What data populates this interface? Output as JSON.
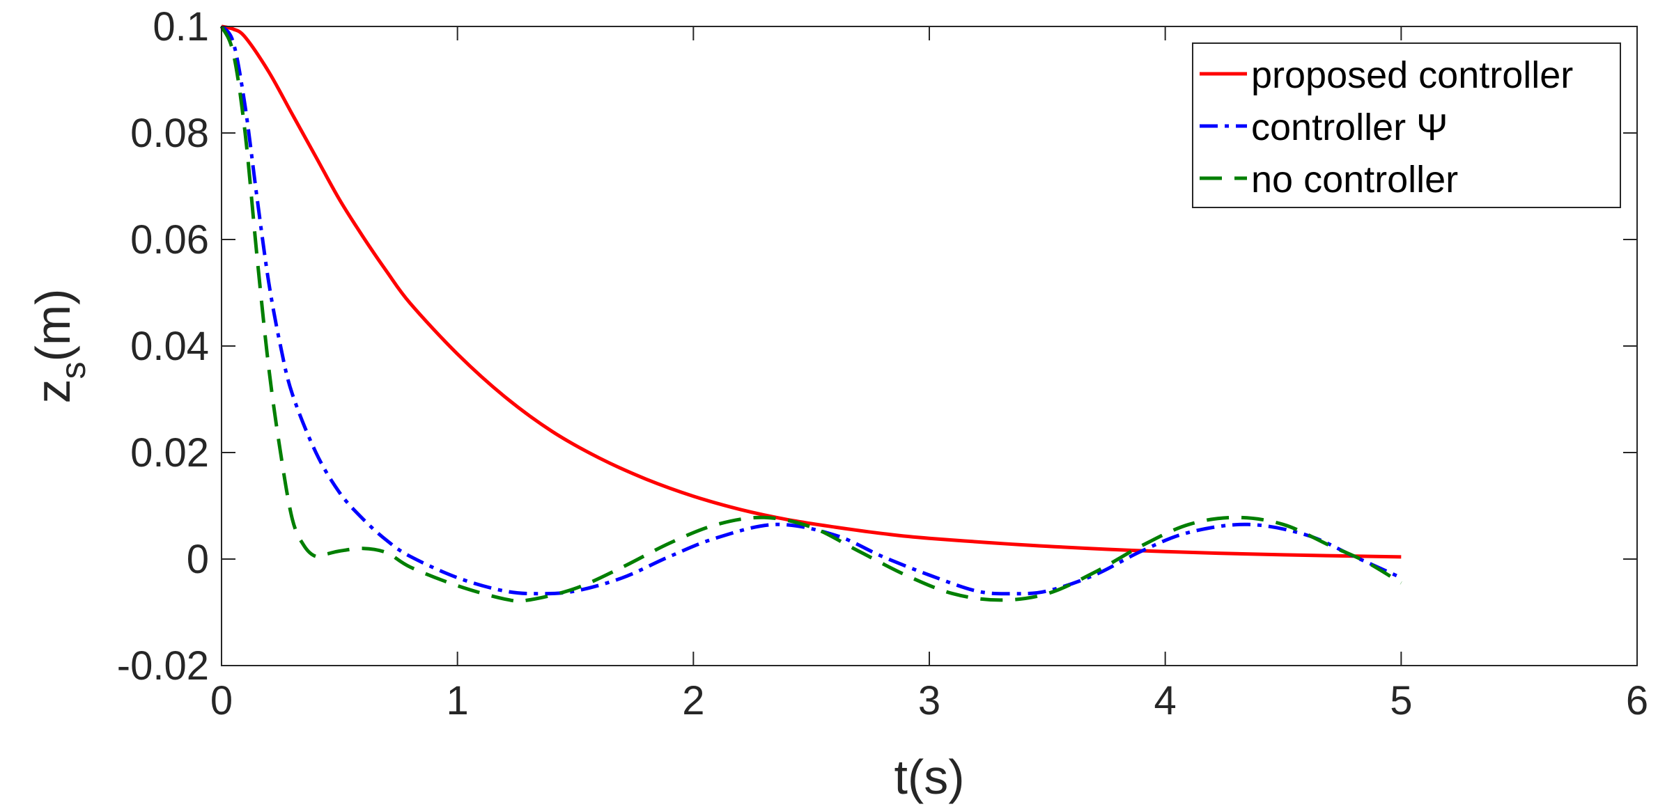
{
  "chart_data": {
    "type": "line",
    "title": "",
    "xlabel": "t(s)",
    "ylabel_main": "z",
    "ylabel_sub": "s",
    "ylabel_unit": "(m)",
    "xlim": [
      0,
      6
    ],
    "ylim": [
      -0.02,
      0.1
    ],
    "xticks": [
      0,
      1,
      2,
      3,
      4,
      5,
      6
    ],
    "xtick_labels": [
      "0",
      "1",
      "2",
      "3",
      "4",
      "5",
      "6"
    ],
    "yticks": [
      -0.02,
      0,
      0.02,
      0.04,
      0.06,
      0.08,
      0.1
    ],
    "ytick_labels": [
      "-0.02",
      "0",
      "0.02",
      "0.04",
      "0.06",
      "0.08",
      "0.1"
    ],
    "grid": false,
    "legend_position": "top-right",
    "series": [
      {
        "name": "proposed controller",
        "color": "#ff0000",
        "dash": "solid",
        "x": [
          0,
          0.05,
          0.1,
          0.2,
          0.3,
          0.4,
          0.5,
          0.6,
          0.7,
          0.8,
          1.0,
          1.2,
          1.4,
          1.6,
          1.8,
          2.0,
          2.2,
          2.4,
          2.6,
          2.8,
          3.0,
          3.5,
          4.0,
          4.5,
          5.0
        ],
        "y": [
          0.1,
          0.0995,
          0.098,
          0.0915,
          0.0835,
          0.0755,
          0.0675,
          0.0605,
          0.054,
          0.048,
          0.0385,
          0.0305,
          0.024,
          0.019,
          0.015,
          0.0118,
          0.0093,
          0.0074,
          0.006,
          0.0048,
          0.0039,
          0.0024,
          0.0014,
          0.0008,
          0.0004
        ]
      },
      {
        "name": "controller Ψ",
        "color": "#0000ff",
        "dash": "dashdot",
        "x": [
          0,
          0.05,
          0.1,
          0.15,
          0.2,
          0.25,
          0.3,
          0.4,
          0.5,
          0.6,
          0.7,
          0.8,
          1.0,
          1.2,
          1.35,
          1.5,
          1.7,
          1.9,
          2.1,
          2.35,
          2.6,
          2.8,
          3.0,
          3.2,
          3.35,
          3.5,
          3.7,
          3.9,
          4.1,
          4.35,
          4.6,
          4.8,
          5.0
        ],
        "y": [
          0.1,
          0.097,
          0.085,
          0.068,
          0.052,
          0.04,
          0.031,
          0.02,
          0.0125,
          0.0075,
          0.0035,
          0.0005,
          -0.0035,
          -0.006,
          -0.0065,
          -0.006,
          -0.0035,
          0.0005,
          0.004,
          0.0065,
          0.0045,
          0.0005,
          -0.003,
          -0.006,
          -0.0065,
          -0.006,
          -0.003,
          0.0015,
          0.005,
          0.0065,
          0.0045,
          0.0005,
          -0.0035
        ]
      },
      {
        "name": "no controller",
        "color": "#007f00",
        "dash": "dashed",
        "x": [
          0,
          0.05,
          0.1,
          0.15,
          0.2,
          0.25,
          0.3,
          0.35,
          0.4,
          0.45,
          0.5,
          0.6,
          0.7,
          0.8,
          1.0,
          1.2,
          1.3,
          1.5,
          1.7,
          1.9,
          2.1,
          2.3,
          2.5,
          2.7,
          2.9,
          3.1,
          3.3,
          3.5,
          3.7,
          3.9,
          4.1,
          4.3,
          4.5,
          4.7,
          4.85,
          5.0
        ],
        "y": [
          0.1,
          0.095,
          0.08,
          0.057,
          0.036,
          0.02,
          0.0075,
          0.0025,
          0.0005,
          0.001,
          0.0015,
          0.002,
          0.0012,
          -0.0015,
          -0.005,
          -0.0075,
          -0.0077,
          -0.0055,
          -0.0015,
          0.003,
          0.0065,
          0.0078,
          0.006,
          0.0015,
          -0.003,
          -0.0065,
          -0.0077,
          -0.0065,
          -0.0025,
          0.0025,
          0.0065,
          0.0078,
          0.0065,
          0.0025,
          -0.0005,
          -0.0045
        ]
      }
    ]
  }
}
